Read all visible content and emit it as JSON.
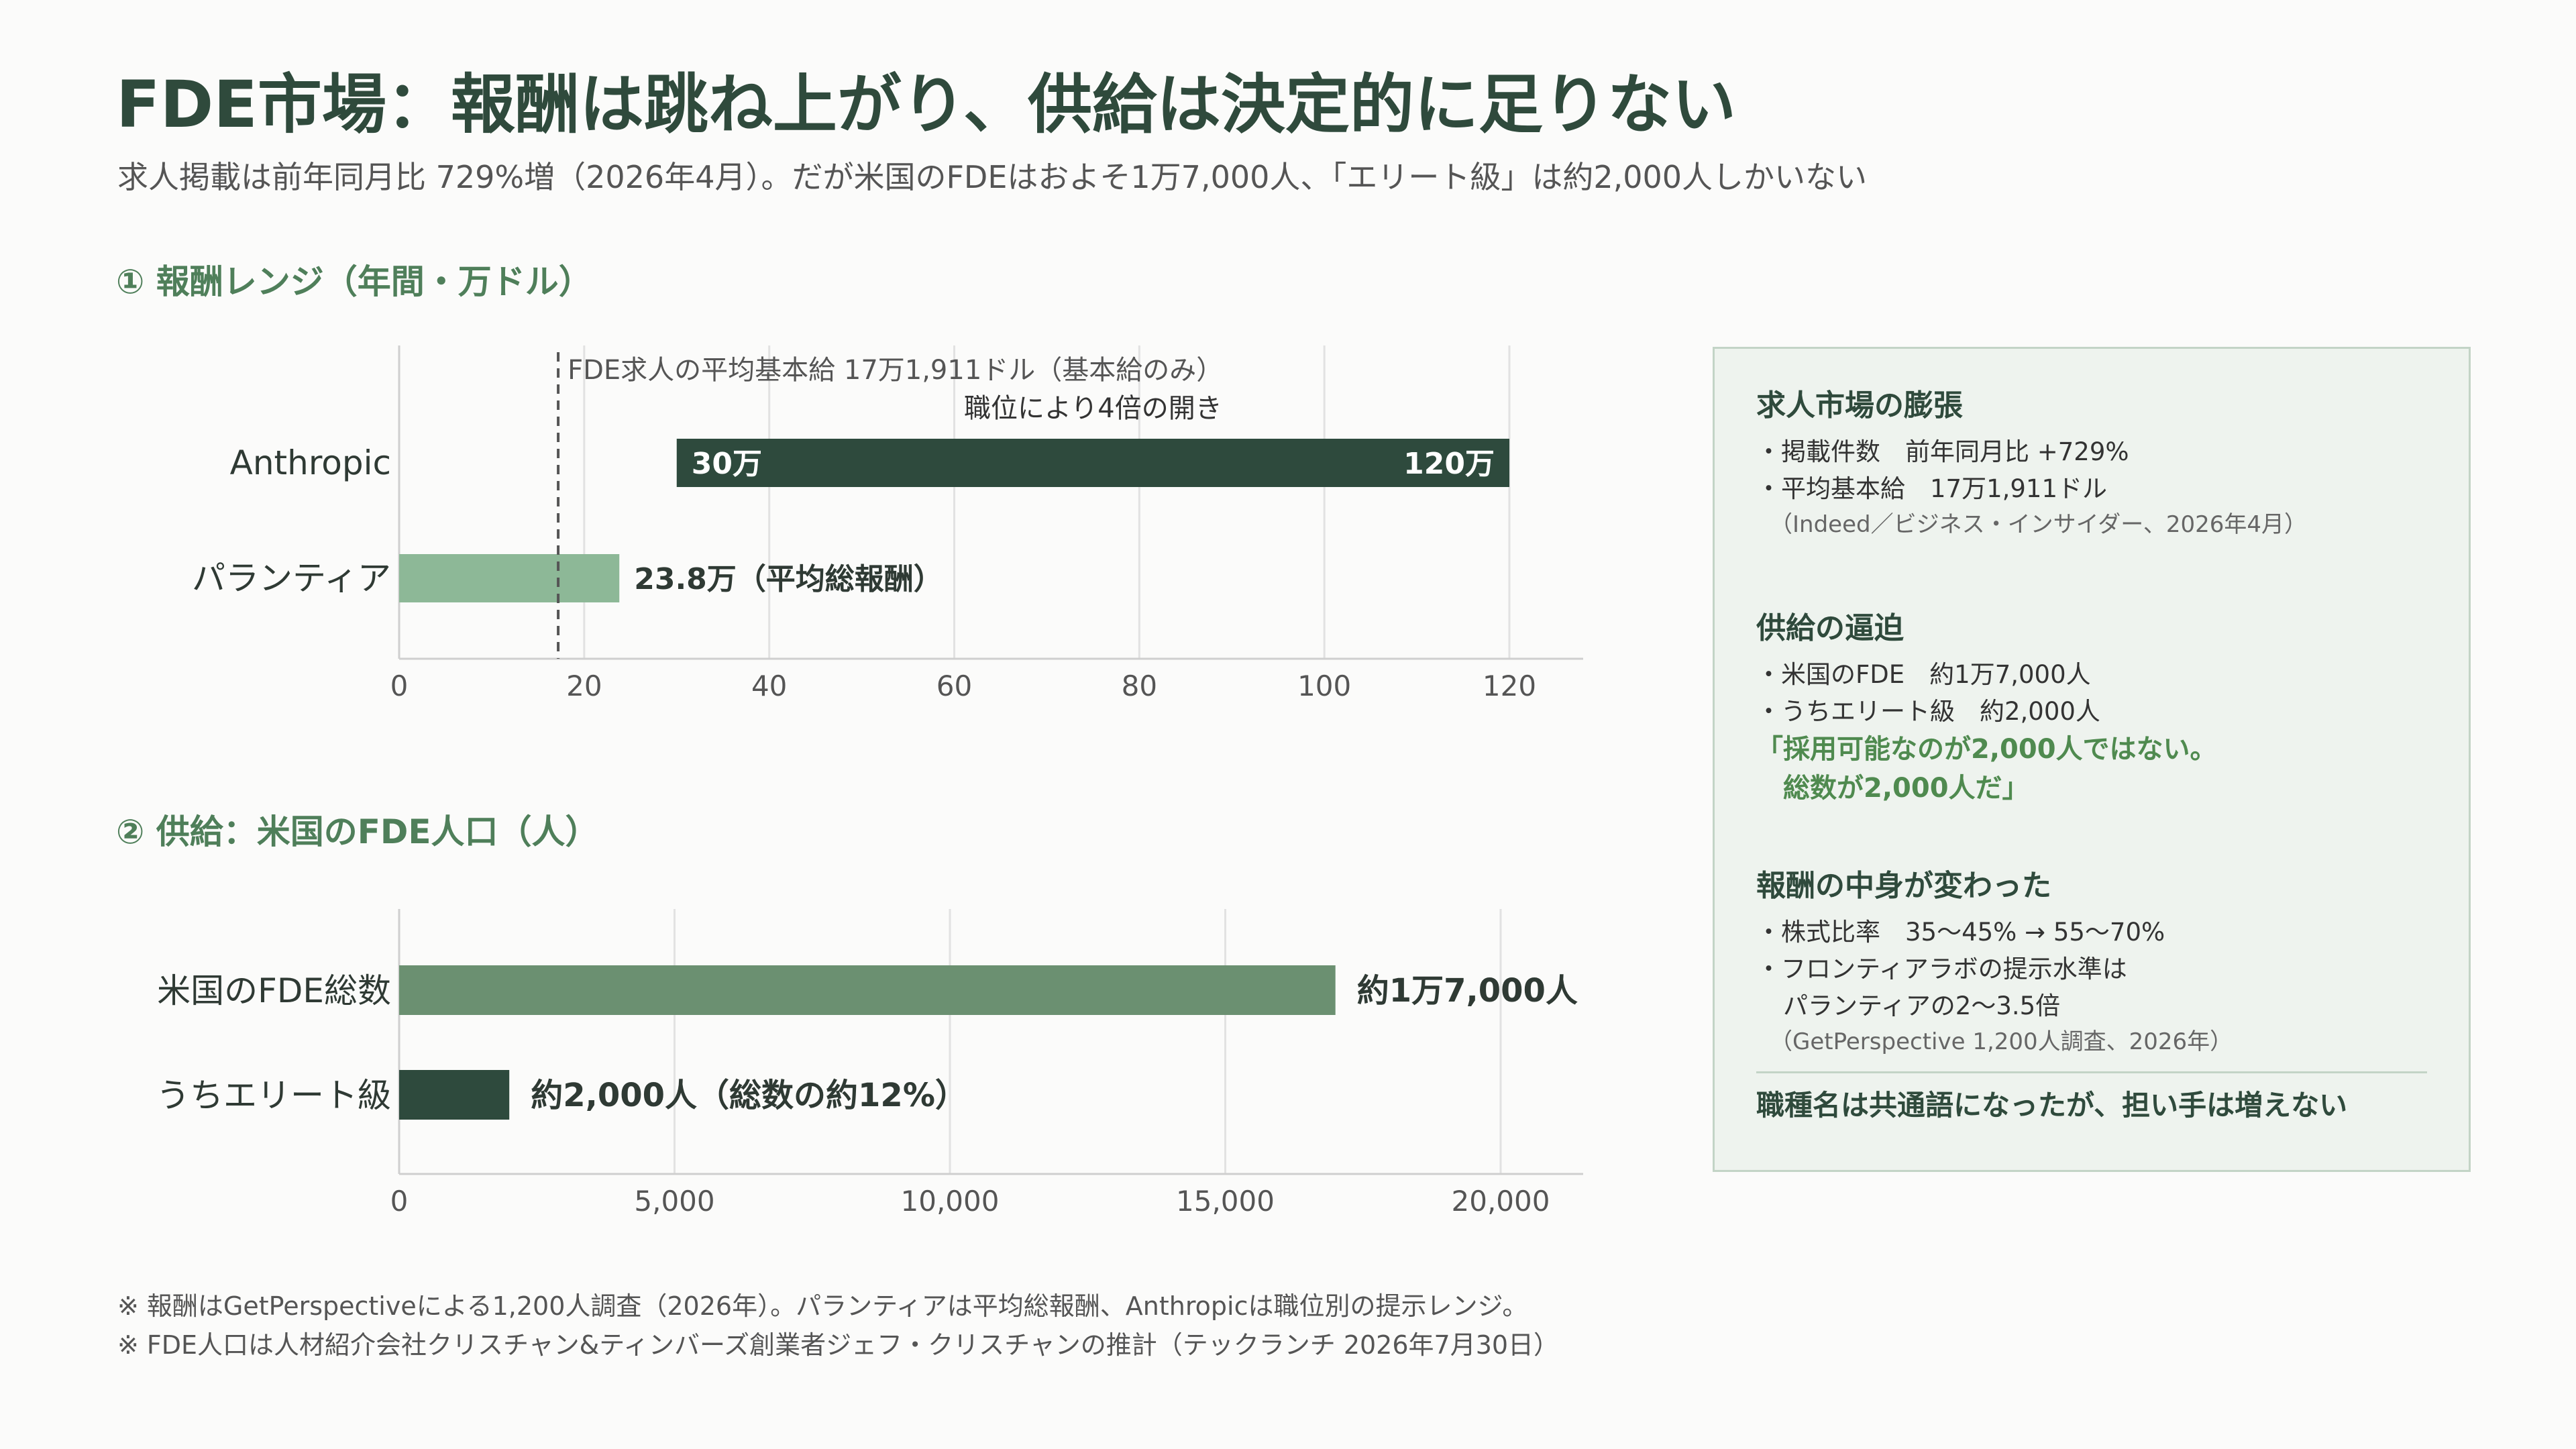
{
  "header": {
    "title": "FDE市場：報酬は跳ね上がり、供給は決定的に足りない",
    "subtitle": "求人掲載は前年同月比 729%増（2026年4月）。だが米国のFDEはおよそ1万7,000人、「エリート級」は約2,000人しかいない"
  },
  "sections": {
    "compensation_title": "① 報酬レンジ（年間・万ドル）",
    "supply_title": "② 供給：米国のFDE人口（人）"
  },
  "chart_data": [
    {
      "type": "bar",
      "orientation": "horizontal",
      "title": "① 報酬レンジ（年間・万ドル）",
      "categories": [
        "Anthropic",
        "パランティア"
      ],
      "series": [
        {
          "category": "Anthropic",
          "start": 30,
          "end": 120,
          "start_label": "30万",
          "end_label": "120万",
          "color": "#2e4a3d"
        },
        {
          "category": "パランティア",
          "start": 0,
          "end": 23.8,
          "label": "23.8万（平均総報酬）",
          "color": "#8db897"
        }
      ],
      "reference_line": {
        "value": 17.19,
        "label": "FDE求人の平均基本給 17万1,911ドル（基本給のみ）"
      },
      "annotation": "職位により4倍の開き",
      "xlim": [
        0,
        128
      ],
      "xticks": [
        0,
        20,
        40,
        60,
        80,
        100,
        120
      ],
      "xtick_labels": [
        "0",
        "20",
        "40",
        "60",
        "80",
        "100",
        "120"
      ],
      "grid": true
    },
    {
      "type": "bar",
      "orientation": "horizontal",
      "title": "② 供給：米国のFDE人口（人）",
      "categories": [
        "米国のFDE総数",
        "うちエリート級"
      ],
      "series": [
        {
          "category": "米国のFDE総数",
          "value": 17000,
          "label": "約1万7,000人",
          "color": "#6b9071"
        },
        {
          "category": "うちエリート級",
          "value": 2000,
          "label": "約2,000人（総数の約12%）",
          "color": "#2e4a3d"
        }
      ],
      "xlim": [
        0,
        21500
      ],
      "xticks": [
        0,
        5000,
        10000,
        15000,
        20000
      ],
      "xtick_labels": [
        "0",
        "5,000",
        "10,000",
        "15,000",
        "20,000"
      ],
      "grid": true
    }
  ],
  "panel": {
    "block1": {
      "title": "求人市場の膨張",
      "items": [
        "・掲載件数　前年同月比 +729%",
        "・平均基本給　17万1,911ドル"
      ],
      "source": "（Indeed／ビジネス・インサイダー、2026年4月）"
    },
    "block2": {
      "title": "供給の逼迫",
      "items": [
        "・米国のFDE　約1万7,000人",
        "・うちエリート級　約2,000人"
      ],
      "quote_line1": "「採用可能なのが2,000人ではない。",
      "quote_line2": "総数が2,000人だ」"
    },
    "block3": {
      "title": "報酬の中身が変わった",
      "items": [
        "・株式比率　35〜45% → 55〜70%",
        "・フロンティアラボの提示水準は"
      ],
      "item_cont": "パランティアの2〜3.5倍",
      "source": "（GetPerspective 1,200人調査、2026年）"
    },
    "conclusion": "職種名は共通語になったが、担い手は増えない"
  },
  "notes": {
    "line1": "※ 報酬はGetPerspectiveによる1,200人調査（2026年）。パランティアは平均総報酬、Anthropicは職位別の提示レンジ。",
    "line2": "※ FDE人口は人材紹介会社クリスチャン&ティンバーズ創業者ジェフ・クリスチャンの推計（テックランチ 2026年7月30日）"
  }
}
